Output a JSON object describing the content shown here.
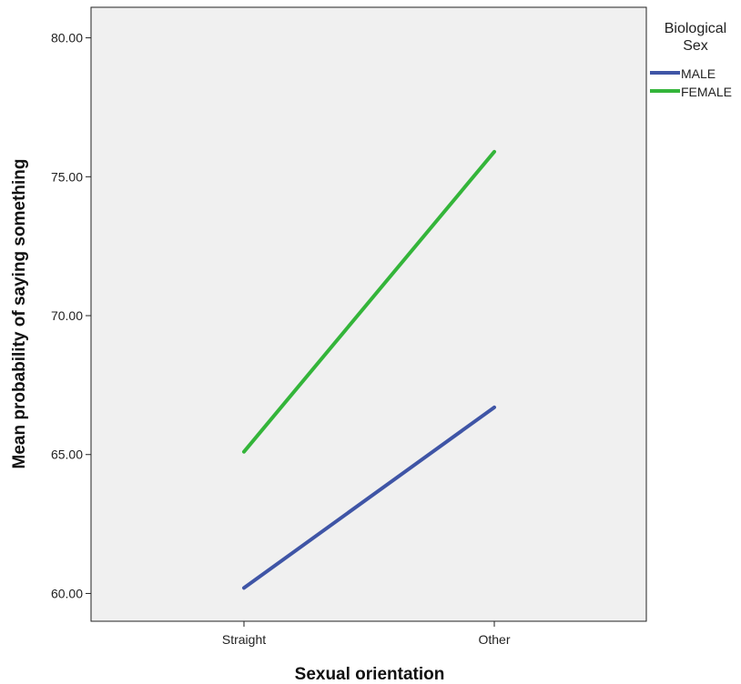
{
  "chart_data": {
    "type": "line",
    "xlabel": "Sexual orientation",
    "ylabel": "Mean probability of saying something",
    "categories": [
      "Straight",
      "Other"
    ],
    "ylim": [
      59,
      81.1
    ],
    "yticks": [
      "60.00",
      "65.00",
      "70.00",
      "75.00",
      "80.00"
    ],
    "grid": false,
    "legend": {
      "title_line1": "Biological",
      "title_line2": "Sex",
      "placement": "right"
    },
    "series": [
      {
        "name": "MALE",
        "color": "#3f55a6",
        "values": [
          60.2,
          66.7
        ]
      },
      {
        "name": "FEMALE",
        "color": "#34b53a",
        "values": [
          65.1,
          75.9
        ]
      }
    ]
  }
}
